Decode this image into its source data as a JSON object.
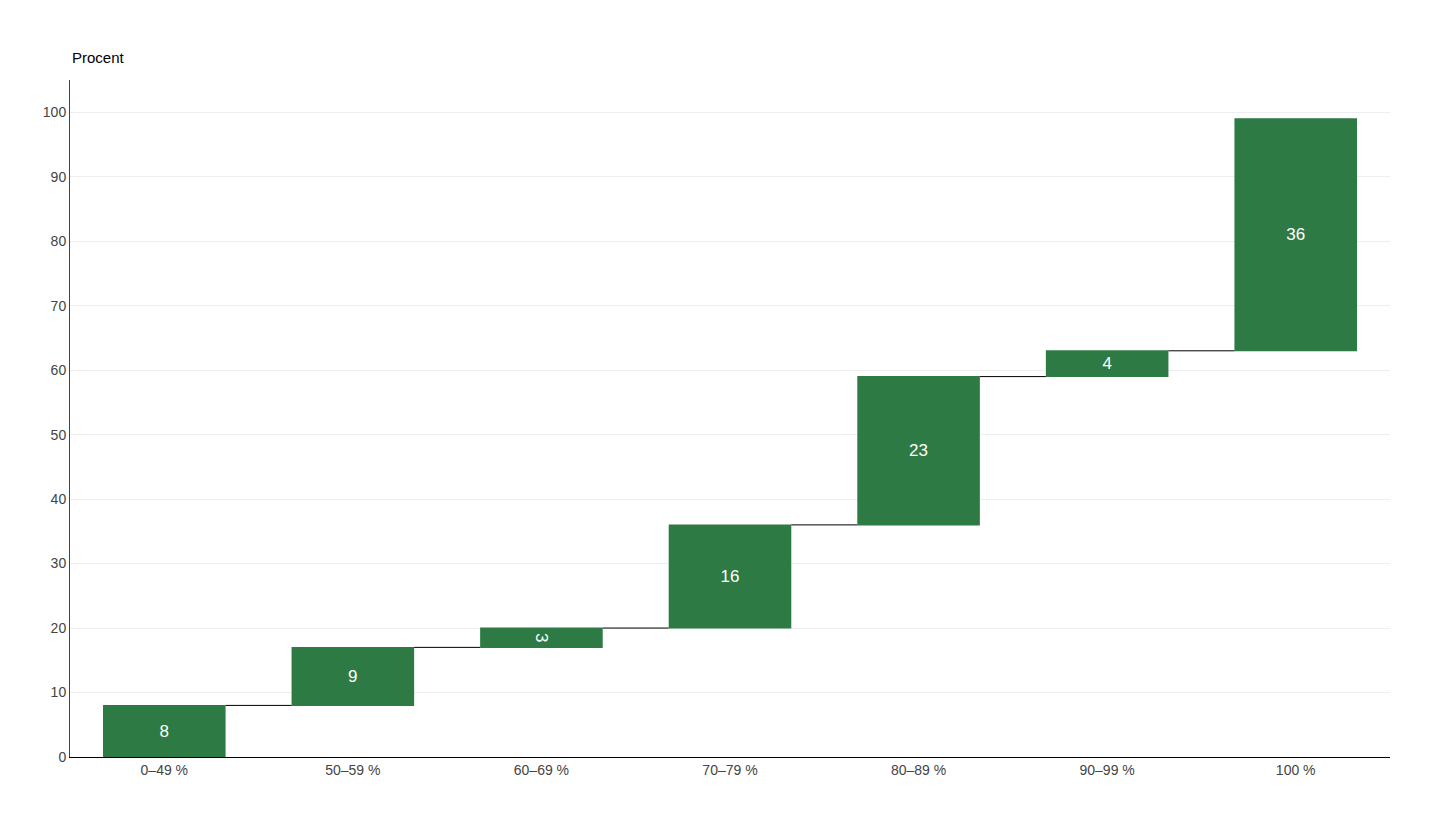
{
  "chart_data": {
    "type": "waterfall",
    "ylabel": "Procent",
    "categories": [
      "0–49 %",
      "50–59 %",
      "60–69 %",
      "70–79 %",
      "80–89 %",
      "90–99 %",
      "100 %"
    ],
    "values": [
      8,
      9,
      3,
      16,
      23,
      4,
      36
    ],
    "color": "#2d7a45",
    "ylim": [
      0,
      105
    ],
    "yticks": [
      0,
      10,
      20,
      30,
      40,
      50,
      60,
      70,
      80,
      90,
      100
    ],
    "grid": true,
    "data_labels": true
  }
}
